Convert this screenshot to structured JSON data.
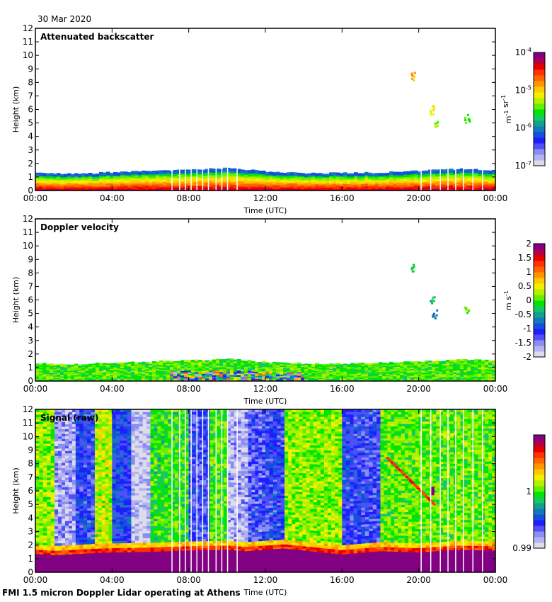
{
  "date_label": "30 Mar 2020",
  "footer": "FMI 1.5 micron Doppler Lidar operating at Athens",
  "palette": [
    "#dcdcea",
    "#b4b4f0",
    "#8c8cf5",
    "#5050fa",
    "#1e1eff",
    "#1450dc",
    "#1478be",
    "#14a08c",
    "#14c864",
    "#00e600",
    "#64f000",
    "#b4f000",
    "#f0f000",
    "#ffc800",
    "#ff9600",
    "#ff6400",
    "#ff3200",
    "#e60000",
    "#b40046",
    "#820082"
  ],
  "chart_data": [
    {
      "type": "heatmap",
      "title": "Attenuated backscatter",
      "xlabel": "Time (UTC)",
      "ylabel": "Height (km)",
      "x_ticks": [
        "00:00",
        "04:00",
        "08:00",
        "12:00",
        "16:00",
        "20:00",
        "00:00"
      ],
      "x_range_hours": [
        0,
        24
      ],
      "y_ticks": [
        0,
        1,
        2,
        3,
        4,
        5,
        6,
        7,
        8,
        9,
        10,
        11,
        12
      ],
      "ylim": [
        0,
        12
      ],
      "colorbar": {
        "label": "m-1 sr-1",
        "scale": "log",
        "range": [
          1e-07,
          0.0001
        ],
        "ticks": [
          "10-7",
          "10-6",
          "10-5",
          "10-4"
        ],
        "tick_values": [
          1e-07,
          1e-06,
          1e-05,
          0.0001
        ]
      },
      "boundary_layer_top_km": [
        {
          "t": 0,
          "h": 1.3
        },
        {
          "t": 2,
          "h": 1.25
        },
        {
          "t": 4,
          "h": 1.35
        },
        {
          "t": 6,
          "h": 1.45
        },
        {
          "t": 8,
          "h": 1.55
        },
        {
          "t": 10,
          "h": 1.65
        },
        {
          "t": 12,
          "h": 1.4
        },
        {
          "t": 14,
          "h": 1.3
        },
        {
          "t": 16,
          "h": 1.3
        },
        {
          "t": 18,
          "h": 1.35
        },
        {
          "t": 20,
          "h": 1.45
        },
        {
          "t": 22,
          "h": 1.6
        },
        {
          "t": 24,
          "h": 1.5
        }
      ],
      "cloud_features": [
        {
          "t": 20.7,
          "h": 6.0,
          "level": 0.65
        },
        {
          "t": 20.8,
          "h": 5.0,
          "level": 0.55
        },
        {
          "t": 22.5,
          "h": 5.4,
          "level": 0.5
        },
        {
          "t": 19.7,
          "h": 8.5,
          "level": 0.7
        }
      ],
      "data_gaps_hours": [
        7.1,
        7.5,
        7.8,
        8.1,
        8.4,
        8.7,
        9.0,
        9.4,
        9.7,
        10.0,
        10.5,
        20.1,
        20.6,
        21.1,
        21.5,
        21.9,
        22.3,
        22.8,
        23.3
      ]
    },
    {
      "type": "heatmap",
      "title": "Doppler velocity",
      "xlabel": "Time (UTC)",
      "ylabel": "Height (km)",
      "x_ticks": [
        "00:00",
        "04:00",
        "08:00",
        "12:00",
        "16:00",
        "20:00",
        "00:00"
      ],
      "x_range_hours": [
        0,
        24
      ],
      "y_ticks": [
        0,
        1,
        2,
        3,
        4,
        5,
        6,
        7,
        8,
        9,
        10,
        11,
        12
      ],
      "ylim": [
        0,
        12
      ],
      "colorbar": {
        "label": "m s-1",
        "scale": "linear",
        "range": [
          -2,
          2
        ],
        "ticks": [
          "-2",
          "-1.5",
          "-1",
          "-0.5",
          "0",
          "0.5",
          "1",
          "1.5",
          "2"
        ],
        "tick_values": [
          -2,
          -1.5,
          -1,
          -0.5,
          0,
          0.5,
          1,
          1.5,
          2
        ]
      },
      "cloud_features": [
        {
          "t": 20.7,
          "h": 6.0,
          "value": -0.3
        },
        {
          "t": 20.8,
          "h": 5.0,
          "value": -0.7
        },
        {
          "t": 22.5,
          "h": 5.4,
          "value": 0.1
        },
        {
          "t": 19.7,
          "h": 8.5,
          "value": -0.2
        }
      ]
    },
    {
      "type": "heatmap",
      "title": "Signal (raw)",
      "xlabel": "Time (UTC)",
      "ylabel": "Height (km)",
      "x_ticks": [
        "00:00",
        "04:00",
        "08:00",
        "12:00",
        "16:00",
        "20:00",
        "00:00"
      ],
      "x_range_hours": [
        0,
        24
      ],
      "y_ticks": [
        0,
        1,
        2,
        3,
        4,
        5,
        6,
        7,
        8,
        9,
        10,
        11,
        12
      ],
      "ylim": [
        0,
        12
      ],
      "colorbar": {
        "label": "",
        "scale": "linear",
        "range": [
          0.99,
          1.01
        ],
        "ticks": [
          "0.99",
          "1"
        ],
        "tick_values": [
          0.99,
          1.0
        ]
      },
      "segments": [
        {
          "t0": 0,
          "t1": 1.0,
          "level": 0.55
        },
        {
          "t0": 1.0,
          "t1": 2.1,
          "level": 0.1
        },
        {
          "t0": 2.1,
          "t1": 3.1,
          "level": 0.22
        },
        {
          "t0": 3.1,
          "t1": 4.0,
          "level": 0.58
        },
        {
          "t0": 4.0,
          "t1": 5.0,
          "level": 0.25
        },
        {
          "t0": 5.0,
          "t1": 6.0,
          "level": 0.05
        },
        {
          "t0": 6.0,
          "t1": 8.0,
          "level": 0.48
        },
        {
          "t0": 8.0,
          "t1": 9.1,
          "level": 0.2
        },
        {
          "t0": 9.1,
          "t1": 10.0,
          "level": 0.5
        },
        {
          "t0": 10.0,
          "t1": 11.1,
          "level": 0.08
        },
        {
          "t0": 11.1,
          "t1": 12.0,
          "level": 0.18
        },
        {
          "t0": 12.0,
          "t1": 13.0,
          "level": 0.22
        },
        {
          "t0": 13.0,
          "t1": 16.0,
          "level": 0.55
        },
        {
          "t0": 16.0,
          "t1": 17.0,
          "level": 0.22
        },
        {
          "t0": 17.0,
          "t1": 18.0,
          "level": 0.2
        },
        {
          "t0": 18.0,
          "t1": 24.0,
          "level": 0.52
        }
      ],
      "surface_layer_top_km": [
        {
          "t": 0,
          "h": 1.35
        },
        {
          "t": 1,
          "h": 1.25
        },
        {
          "t": 3,
          "h": 1.4
        },
        {
          "t": 4,
          "h": 1.45
        },
        {
          "t": 6,
          "h": 1.5
        },
        {
          "t": 8,
          "h": 1.6
        },
        {
          "t": 10,
          "h": 1.65
        },
        {
          "t": 11,
          "h": 1.55
        },
        {
          "t": 13,
          "h": 1.75
        },
        {
          "t": 16,
          "h": 1.3
        },
        {
          "t": 18,
          "h": 1.55
        },
        {
          "t": 20,
          "h": 1.45
        },
        {
          "t": 22,
          "h": 1.65
        },
        {
          "t": 24,
          "h": 1.6
        }
      ],
      "data_gaps_hours": [
        7.1,
        7.5,
        7.8,
        8.1,
        8.4,
        8.7,
        9.0,
        9.4,
        9.7,
        10.0,
        10.5,
        20.1,
        20.6,
        21.1,
        21.5,
        21.9,
        22.3,
        22.8,
        23.3
      ]
    }
  ]
}
